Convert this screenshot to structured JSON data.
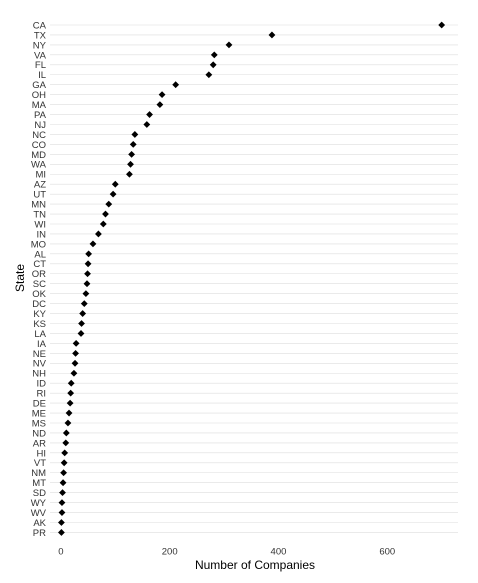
{
  "chart_data": {
    "type": "dot",
    "title": "",
    "xlabel": "Number of Companies",
    "ylabel": "State",
    "xlim": [
      -20,
      730
    ],
    "xticks": [
      0,
      200,
      400,
      600
    ],
    "grid": "horizontal",
    "legend": "none",
    "marker": "diamond",
    "colors": {
      "point": "#000000",
      "grid": "#dedede",
      "text": "#333333"
    },
    "points": [
      {
        "state": "CA",
        "value": 700
      },
      {
        "state": "TX",
        "value": 388
      },
      {
        "state": "NY",
        "value": 309
      },
      {
        "state": "VA",
        "value": 282
      },
      {
        "state": "FL",
        "value": 280
      },
      {
        "state": "IL",
        "value": 272
      },
      {
        "state": "GA",
        "value": 211
      },
      {
        "state": "OH",
        "value": 186
      },
      {
        "state": "MA",
        "value": 182
      },
      {
        "state": "PA",
        "value": 163
      },
      {
        "state": "NJ",
        "value": 158
      },
      {
        "state": "NC",
        "value": 136
      },
      {
        "state": "CO",
        "value": 133
      },
      {
        "state": "MD",
        "value": 130
      },
      {
        "state": "WA",
        "value": 128
      },
      {
        "state": "MI",
        "value": 126
      },
      {
        "state": "AZ",
        "value": 100
      },
      {
        "state": "UT",
        "value": 96
      },
      {
        "state": "MN",
        "value": 88
      },
      {
        "state": "TN",
        "value": 82
      },
      {
        "state": "WI",
        "value": 78
      },
      {
        "state": "IN",
        "value": 69
      },
      {
        "state": "MO",
        "value": 59
      },
      {
        "state": "AL",
        "value": 51
      },
      {
        "state": "CT",
        "value": 50
      },
      {
        "state": "OR",
        "value": 49
      },
      {
        "state": "SC",
        "value": 48
      },
      {
        "state": "OK",
        "value": 46
      },
      {
        "state": "DC",
        "value": 43
      },
      {
        "state": "KY",
        "value": 40
      },
      {
        "state": "KS",
        "value": 38
      },
      {
        "state": "LA",
        "value": 37
      },
      {
        "state": "IA",
        "value": 28
      },
      {
        "state": "NE",
        "value": 27
      },
      {
        "state": "NV",
        "value": 26
      },
      {
        "state": "NH",
        "value": 24
      },
      {
        "state": "ID",
        "value": 19
      },
      {
        "state": "RI",
        "value": 18
      },
      {
        "state": "DE",
        "value": 17
      },
      {
        "state": "ME",
        "value": 15
      },
      {
        "state": "MS",
        "value": 13
      },
      {
        "state": "ND",
        "value": 10
      },
      {
        "state": "AR",
        "value": 9
      },
      {
        "state": "HI",
        "value": 7
      },
      {
        "state": "VT",
        "value": 6
      },
      {
        "state": "NM",
        "value": 5
      },
      {
        "state": "MT",
        "value": 4
      },
      {
        "state": "SD",
        "value": 3
      },
      {
        "state": "WY",
        "value": 2
      },
      {
        "state": "WV",
        "value": 2
      },
      {
        "state": "AK",
        "value": 1
      },
      {
        "state": "PR",
        "value": 1
      }
    ]
  }
}
